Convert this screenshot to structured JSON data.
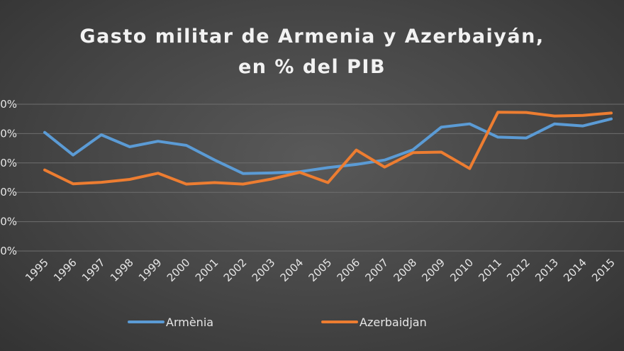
{
  "chart_data": {
    "type": "line",
    "title_lines": [
      "Gasto militar de Armenia y Azerbaiyán,",
      "en % del PIB"
    ],
    "x": [
      "1995",
      "1996",
      "1997",
      "1998",
      "1999",
      "2000",
      "2001",
      "2002",
      "2003",
      "2004",
      "2005",
      "2006",
      "2007",
      "2008",
      "2009",
      "2010",
      "2011",
      "2012",
      "2013",
      "2014",
      "2015"
    ],
    "y_ticks": [
      "0%",
      "0%",
      "0%",
      "0%",
      "0%",
      "0%"
    ],
    "ylim": [
      0,
      5
    ],
    "grid": true,
    "legend_position": "bottom",
    "series": [
      {
        "name": "Armènia",
        "color": "#5b9bd5",
        "values": [
          4.04,
          3.27,
          3.96,
          3.55,
          3.74,
          3.6,
          3.1,
          2.64,
          2.66,
          2.7,
          2.84,
          2.95,
          3.1,
          3.45,
          4.22,
          4.33,
          3.88,
          3.85,
          4.33,
          4.26,
          4.5
        ]
      },
      {
        "name": "Azerbaidjan",
        "color": "#ed7d31",
        "values": [
          2.76,
          2.29,
          2.34,
          2.44,
          2.65,
          2.28,
          2.33,
          2.28,
          2.45,
          2.68,
          2.33,
          3.44,
          2.86,
          3.35,
          3.37,
          2.81,
          4.73,
          4.72,
          4.6,
          4.62,
          4.7
        ]
      }
    ]
  }
}
